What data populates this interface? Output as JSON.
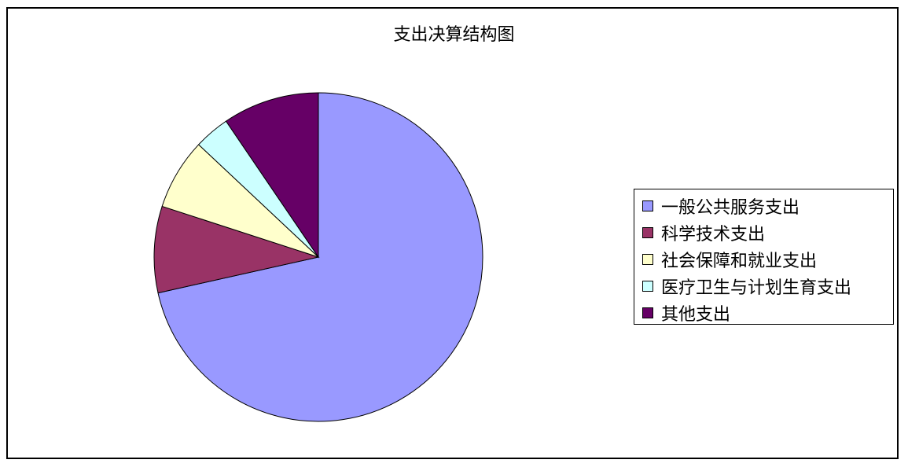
{
  "chart_data": {
    "type": "pie",
    "title": "支出决算结构图",
    "legend_position": "right",
    "slices": [
      {
        "label": "一般公共服务支出",
        "value": 71.5,
        "color": "#9999ff"
      },
      {
        "label": "科学技术支出",
        "value": 8.5,
        "color": "#993366"
      },
      {
        "label": "社会保障和就业支出",
        "value": 7.0,
        "color": "#ffffcc"
      },
      {
        "label": "医疗卫生与计划生育支出",
        "value": 3.5,
        "color": "#ccffff"
      },
      {
        "label": "其他支出",
        "value": 9.5,
        "color": "#660066"
      }
    ]
  }
}
